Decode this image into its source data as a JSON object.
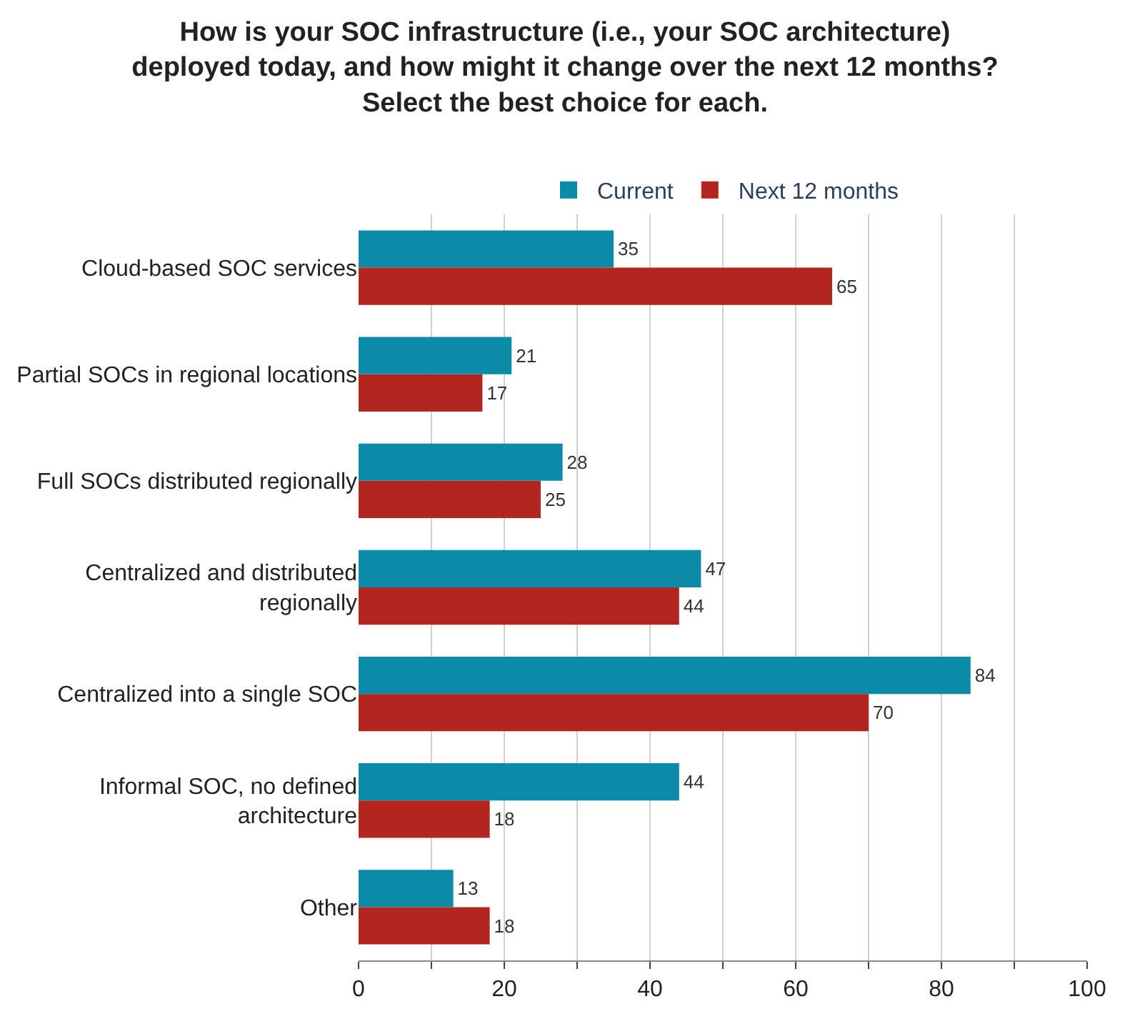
{
  "chart_data": {
    "type": "bar",
    "orientation": "horizontal",
    "title": "How is your SOC infrastructure (i.e., your SOC architecture) deployed today, and how might it change over the next 12 months? Select the best choice for each.",
    "categories": [
      "Cloud-based SOC services",
      "Partial SOCs in regional locations",
      "Full SOCs distributed regionally",
      "Centralized and distributed regionally",
      "Centralized into a single SOC",
      "Informal SOC, no defined architecture",
      "Other"
    ],
    "series": [
      {
        "name": "Current",
        "color": "#0b8ba8",
        "values": [
          35,
          21,
          28,
          47,
          84,
          44,
          13
        ]
      },
      {
        "name": "Next 12 months",
        "color": "#b3251f",
        "values": [
          65,
          17,
          25,
          44,
          70,
          18,
          18
        ]
      }
    ],
    "xlim": [
      0,
      100
    ],
    "xticks": [
      0,
      {
        "value": 10,
        "label": null
      },
      20,
      {
        "value": 30,
        "label": null
      },
      40,
      {
        "value": 50,
        "label": null
      },
      60,
      {
        "value": 70,
        "label": null
      },
      80,
      {
        "value": 90,
        "label": null
      },
      100
    ],
    "grid": "x",
    "legend": "top",
    "data_labels": true
  }
}
